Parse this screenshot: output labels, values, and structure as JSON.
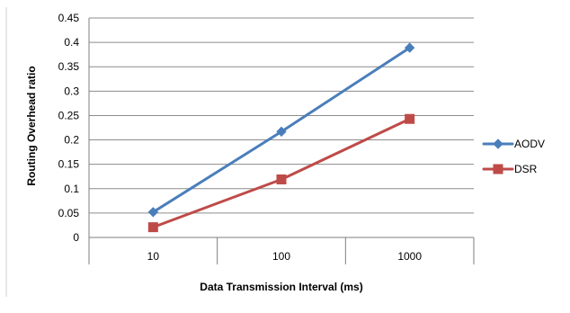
{
  "chart_data": {
    "type": "line",
    "title": "",
    "xlabel": "Data Transmission Interval (ms)",
    "ylabel": "Routing Overhead ratio",
    "categories": [
      "10",
      "100",
      "1000"
    ],
    "ylim": [
      0,
      0.45
    ],
    "yticks": [
      "0",
      "0.05",
      "0.1",
      "0.15",
      "0.2",
      "0.25",
      "0.3",
      "0.35",
      "0.4",
      "0.45"
    ],
    "grid": true,
    "legend_position": "right",
    "series": [
      {
        "name": "AODV",
        "values": [
          0.052,
          0.217,
          0.389
        ],
        "color": "#4A7EBB",
        "marker": "diamond"
      },
      {
        "name": "DSR",
        "values": [
          0.021,
          0.119,
          0.243
        ],
        "color": "#BE4B48",
        "marker": "square"
      }
    ]
  }
}
